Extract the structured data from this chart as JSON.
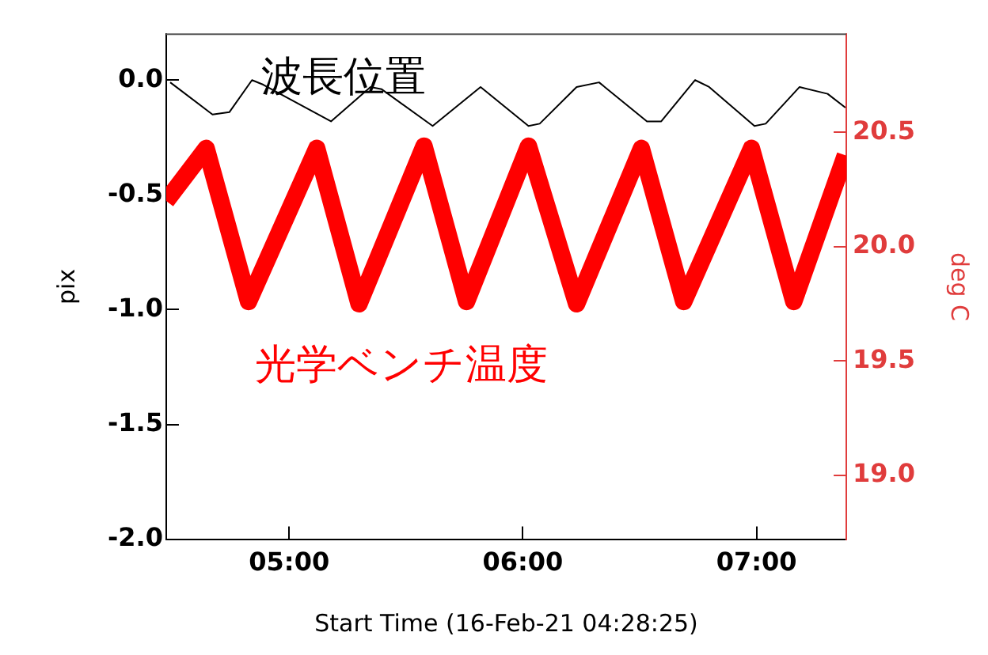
{
  "chart_data": {
    "type": "line",
    "xlabel": "Start Time (16-Feb-21 04:28:25)",
    "ylabel": "pix",
    "y2label": "deg C",
    "x": [
      4.491,
      4.672,
      4.744,
      4.841,
      4.889,
      5.179,
      5.348,
      5.396,
      5.614,
      5.819,
      6.024,
      6.072,
      6.23,
      6.326,
      6.531,
      6.592,
      6.737,
      6.797,
      6.991,
      7.039,
      7.184,
      7.304,
      7.38
    ],
    "series": [
      {
        "name": "波長位置",
        "color": "#000000",
        "values": [
          -0.01,
          -0.15,
          -0.14,
          0.0,
          -0.02,
          -0.18,
          -0.03,
          -0.04,
          -0.2,
          -0.03,
          -0.2,
          -0.19,
          -0.03,
          -0.01,
          -0.18,
          -0.18,
          0.0,
          -0.03,
          -0.2,
          -0.19,
          -0.03,
          -0.06,
          -0.12
        ]
      },
      {
        "name": "光学ベンチ温度",
        "color": "#ff0000",
        "axis": "y2",
        "x": [
          4.474,
          4.645,
          4.826,
          5.118,
          5.299,
          5.577,
          5.759,
          6.024,
          6.23,
          6.507,
          6.688,
          6.978,
          7.159,
          7.38
        ],
        "values": [
          20.2,
          20.43,
          19.76,
          20.43,
          19.75,
          20.44,
          19.76,
          20.44,
          19.75,
          20.43,
          19.76,
          20.43,
          19.76,
          20.4
        ]
      }
    ],
    "xlim": [
      4.474,
      7.384
    ],
    "xticks": [
      {
        "value": 5,
        "label": "05:00"
      },
      {
        "value": 6,
        "label": "06:00"
      },
      {
        "value": 7,
        "label": "07:00"
      }
    ],
    "ylim": [
      -2.0,
      0.2
    ],
    "yticks": [
      {
        "value": 0,
        "label": "0.0"
      },
      -0.5,
      {
        "value": -1,
        "label": "-1.0"
      },
      -1.5,
      {
        "value": -2,
        "label": "-2.0"
      }
    ],
    "y2lim": [
      18.72,
      20.93
    ],
    "y2ticks": [
      20.5,
      {
        "value": 20,
        "label": "20.0"
      },
      19.5,
      {
        "value": 19,
        "label": "19.0"
      }
    ],
    "grid": false,
    "legend": false,
    "marker": "none",
    "line_style": "solid"
  }
}
